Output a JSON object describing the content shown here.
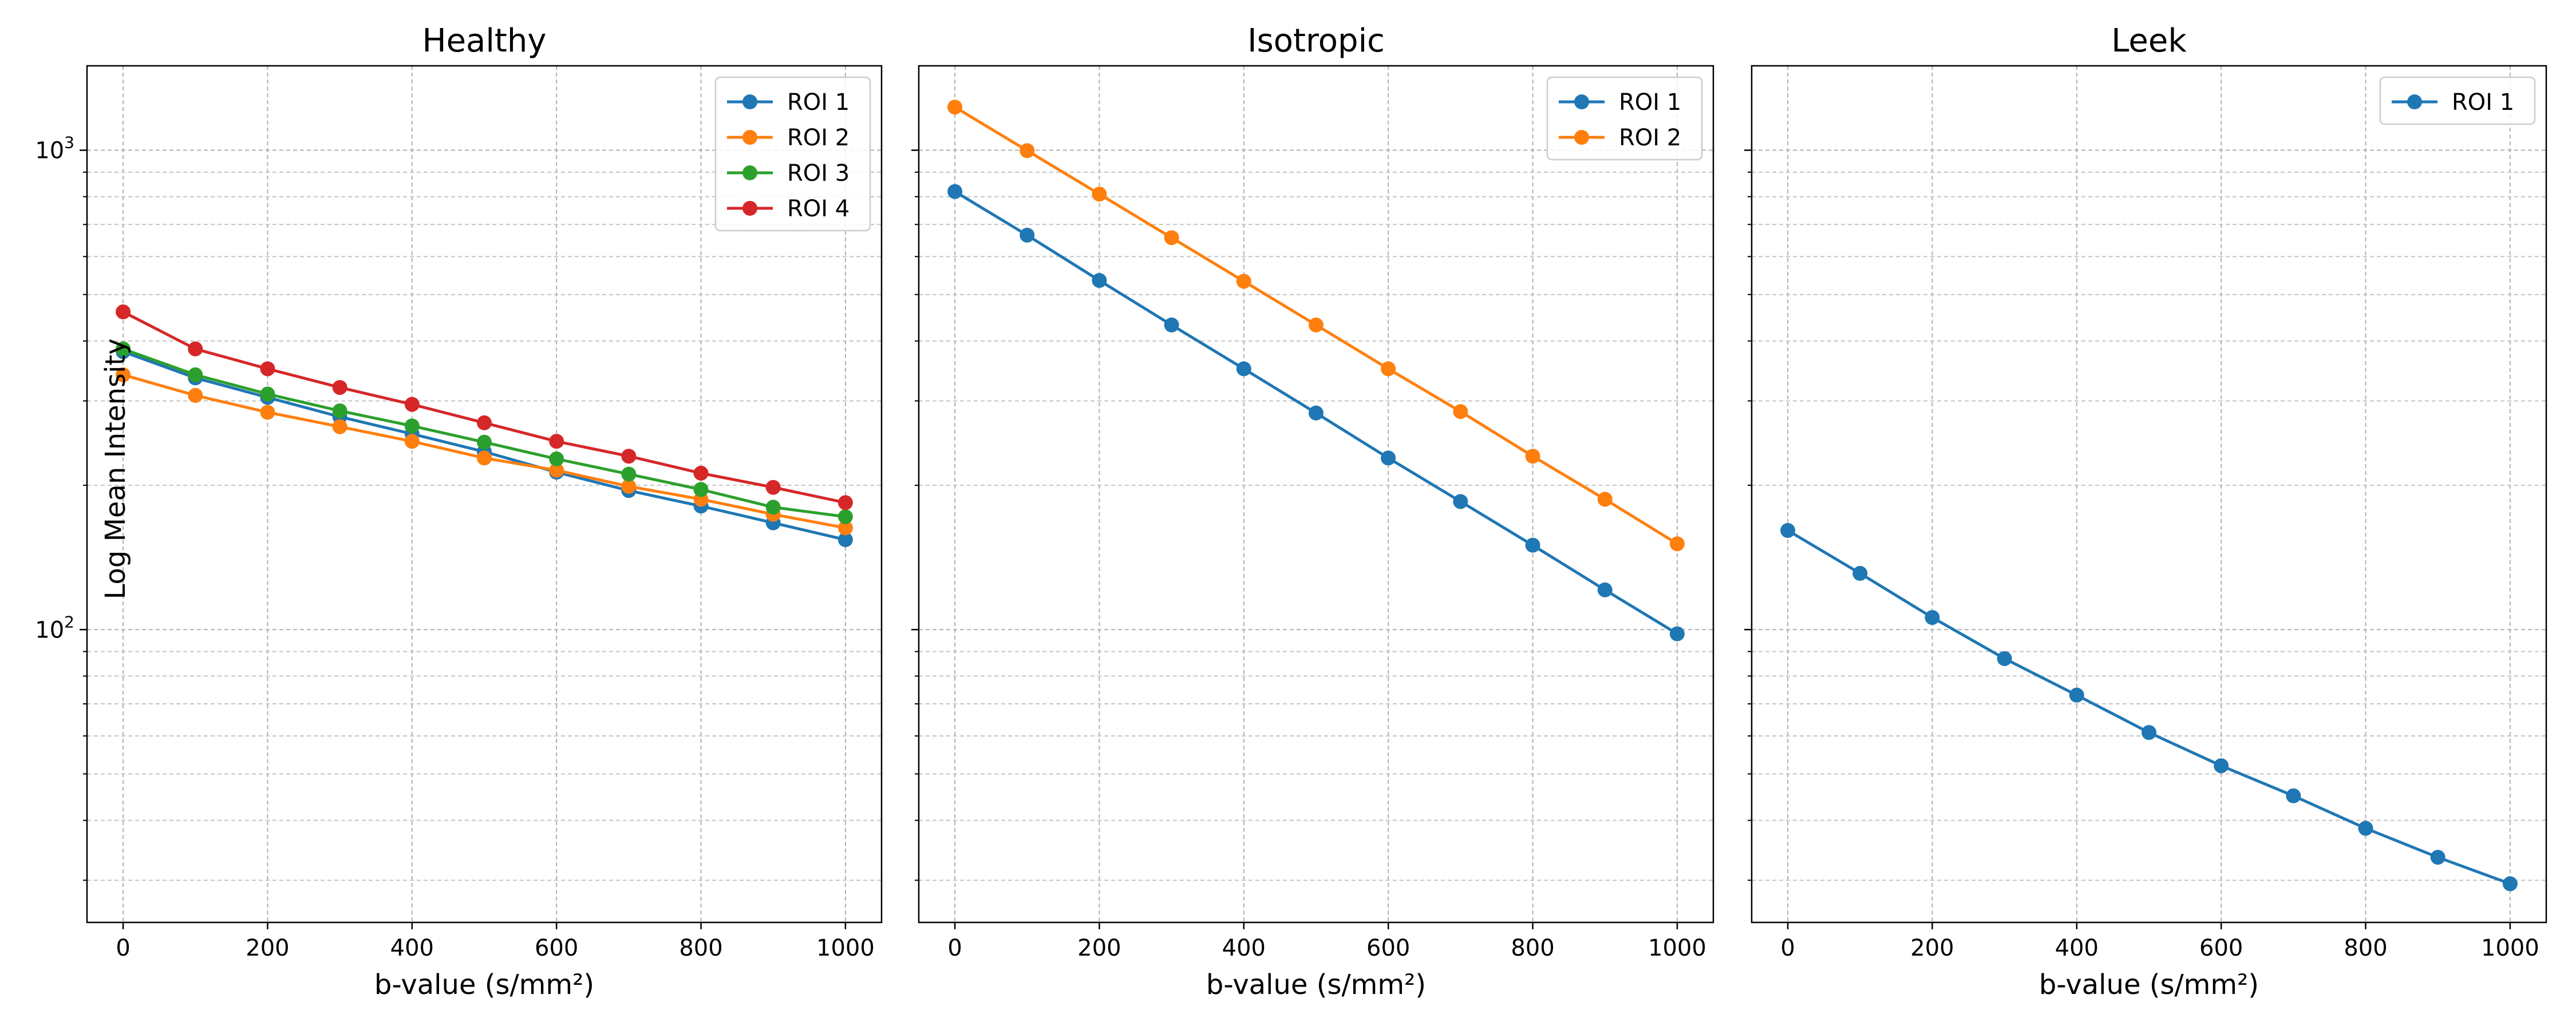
{
  "figure": {
    "ylabel": "Log Mean Intensity"
  },
  "chart_data": [
    {
      "type": "line",
      "title": "Healthy",
      "xlabel": "b-value (s/mm²)",
      "ylabel": "Log Mean Intensity",
      "yscale": "log",
      "xlim": [
        -50,
        1050
      ],
      "ylim": [
        24.5,
        1500
      ],
      "xticks": [
        0,
        200,
        400,
        600,
        800,
        1000
      ],
      "grid": true,
      "legend_position": "top-right",
      "x": [
        0,
        100,
        200,
        300,
        400,
        500,
        600,
        700,
        800,
        900,
        1000
      ],
      "series": [
        {
          "name": "ROI 1",
          "color": "#1f77b4",
          "values": [
            380,
            335,
            305,
            278,
            256,
            235,
            213,
            195,
            181,
            167,
            154
          ]
        },
        {
          "name": "ROI 2",
          "color": "#ff7f0e",
          "values": [
            340,
            308,
            284,
            265,
            247,
            228,
            215,
            199,
            187,
            174,
            163
          ]
        },
        {
          "name": "ROI 3",
          "color": "#2ca02c",
          "values": [
            385,
            340,
            310,
            286,
            266,
            246,
            227,
            211,
            196,
            180,
            172
          ]
        },
        {
          "name": "ROI 4",
          "color": "#d62728",
          "values": [
            460,
            385,
            350,
            320,
            295,
            270,
            247,
            230,
            212,
            198,
            184
          ]
        }
      ]
    },
    {
      "type": "line",
      "title": "Isotropic",
      "xlabel": "b-value (s/mm²)",
      "yscale": "log",
      "xlim": [
        -50,
        1050
      ],
      "ylim": [
        24.5,
        1500
      ],
      "xticks": [
        0,
        200,
        400,
        600,
        800,
        1000
      ],
      "grid": true,
      "legend_position": "top-right",
      "x": [
        0,
        100,
        200,
        300,
        400,
        500,
        600,
        700,
        800,
        900,
        1000
      ],
      "series": [
        {
          "name": "ROI 1",
          "color": "#1f77b4",
          "values": [
            820,
            665,
            535,
            432,
            350,
            283,
            228,
            185,
            150,
            121,
            98
          ]
        },
        {
          "name": "ROI 2",
          "color": "#ff7f0e",
          "values": [
            1230,
            998,
            810,
            657,
            533,
            432,
            350,
            285,
            230,
            187,
            151
          ]
        }
      ]
    },
    {
      "type": "line",
      "title": "Leek",
      "xlabel": "b-value (s/mm²)",
      "yscale": "log",
      "xlim": [
        -50,
        1050
      ],
      "ylim": [
        24.5,
        1500
      ],
      "xticks": [
        0,
        200,
        400,
        600,
        800,
        1000
      ],
      "grid": true,
      "legend_position": "top-right",
      "x": [
        0,
        100,
        200,
        300,
        400,
        500,
        600,
        700,
        800,
        900,
        1000
      ],
      "series": [
        {
          "name": "ROI 1",
          "color": "#1f77b4",
          "values": [
            161,
            131,
            106,
            87,
            73,
            61,
            52,
            45,
            38.5,
            33.5,
            29.5
          ]
        }
      ]
    }
  ]
}
